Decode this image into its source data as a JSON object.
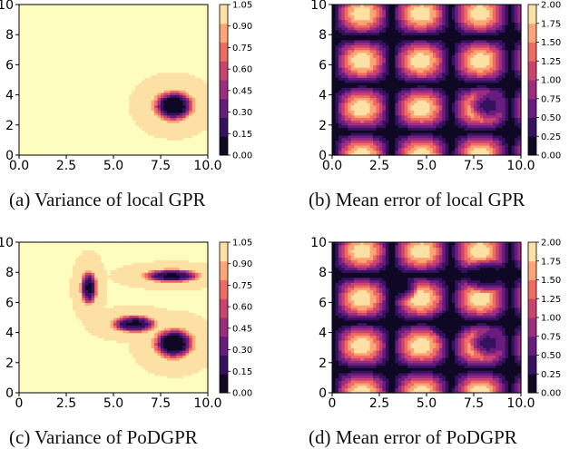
{
  "figure": {
    "panels": [
      {
        "id": "a",
        "caption": "(a) Variance of local GPR"
      },
      {
        "id": "b",
        "caption": "(b) Mean error of local GPR"
      },
      {
        "id": "c",
        "caption": "(c) Variance of PoDGPR"
      },
      {
        "id": "d",
        "caption": "(d) Mean error of PoDGPR"
      }
    ]
  },
  "chart_data": [
    {
      "type": "heatmap",
      "panel": "a",
      "xlim": [
        0,
        10
      ],
      "ylim": [
        0,
        10
      ],
      "xticks": [
        "0.0",
        "2.5",
        "5.0",
        "7.5",
        "10.0"
      ],
      "yticks": [
        "0",
        "2",
        "4",
        "6",
        "8",
        "10"
      ],
      "colorbar": {
        "ticks": [
          "0.00",
          "0.15",
          "0.30",
          "0.45",
          "0.60",
          "0.75",
          "0.90",
          "1.05"
        ],
        "range": [
          0,
          1.05
        ]
      },
      "background_value": 1.05,
      "blobs": [
        {
          "x": 8.2,
          "y": 3.3,
          "rx": 0.85,
          "ry": 0.8,
          "value": 0.02
        }
      ]
    },
    {
      "type": "heatmap",
      "panel": "b",
      "xlim": [
        0,
        10
      ],
      "ylim": [
        0,
        10
      ],
      "xticks": [
        "0.0",
        "2.5",
        "5.0",
        "7.5",
        "10.0"
      ],
      "yticks": [
        "0",
        "2",
        "4",
        "6",
        "8",
        "10"
      ],
      "colorbar": {
        "ticks": [
          "0.00",
          "0.25",
          "0.50",
          "0.75",
          "1.00",
          "1.25",
          "1.50",
          "1.75",
          "2.00"
        ],
        "range": [
          0,
          2
        ]
      },
      "pattern": "|sin(x)*cos(y)|*2",
      "dampened": [
        {
          "x": 8.2,
          "y": 3.3,
          "r": 1.0
        }
      ]
    },
    {
      "type": "heatmap",
      "panel": "c",
      "xlim": [
        0,
        10
      ],
      "ylim": [
        0,
        10
      ],
      "xticks": [
        "0",
        "2.5",
        "5.0",
        "7.5",
        "10.0"
      ],
      "yticks": [
        "0",
        "2",
        "4",
        "6",
        "8",
        "10"
      ],
      "colorbar": {
        "ticks": [
          "0.00",
          "0.15",
          "0.30",
          "0.45",
          "0.60",
          "0.75",
          "0.90",
          "1.05"
        ],
        "range": [
          0,
          1.05
        ]
      },
      "background_value": 1.05,
      "blobs": [
        {
          "x": 8.2,
          "y": 3.3,
          "rx": 0.85,
          "ry": 0.8,
          "value": 0.02
        },
        {
          "x": 3.7,
          "y": 7.0,
          "rx": 0.35,
          "ry": 0.9,
          "value": 0.12
        },
        {
          "x": 6.1,
          "y": 4.6,
          "rx": 0.95,
          "ry": 0.45,
          "value": 0.12
        },
        {
          "x": 8.1,
          "y": 7.8,
          "rx": 1.2,
          "ry": 0.35,
          "value": 0.12
        }
      ]
    },
    {
      "type": "heatmap",
      "panel": "d",
      "xlim": [
        0,
        10
      ],
      "ylim": [
        0,
        10
      ],
      "xticks": [
        "0",
        "2.5",
        "5.0",
        "7.5",
        "10.0"
      ],
      "yticks": [
        "0",
        "2",
        "4",
        "6",
        "8",
        "10"
      ],
      "colorbar": {
        "ticks": [
          "0.00",
          "0.25",
          "0.50",
          "0.75",
          "1.00",
          "1.25",
          "1.50",
          "1.75",
          "2.00"
        ],
        "range": [
          0,
          2
        ]
      },
      "pattern": "|sin(x)*cos(y)|*2",
      "dampened": [
        {
          "x": 8.2,
          "y": 3.3,
          "r": 1.0
        },
        {
          "x": 3.7,
          "y": 7.0,
          "r": 0.9
        },
        {
          "x": 6.1,
          "y": 4.6,
          "r": 1.0
        },
        {
          "x": 8.1,
          "y": 7.8,
          "r": 1.2
        }
      ]
    }
  ]
}
